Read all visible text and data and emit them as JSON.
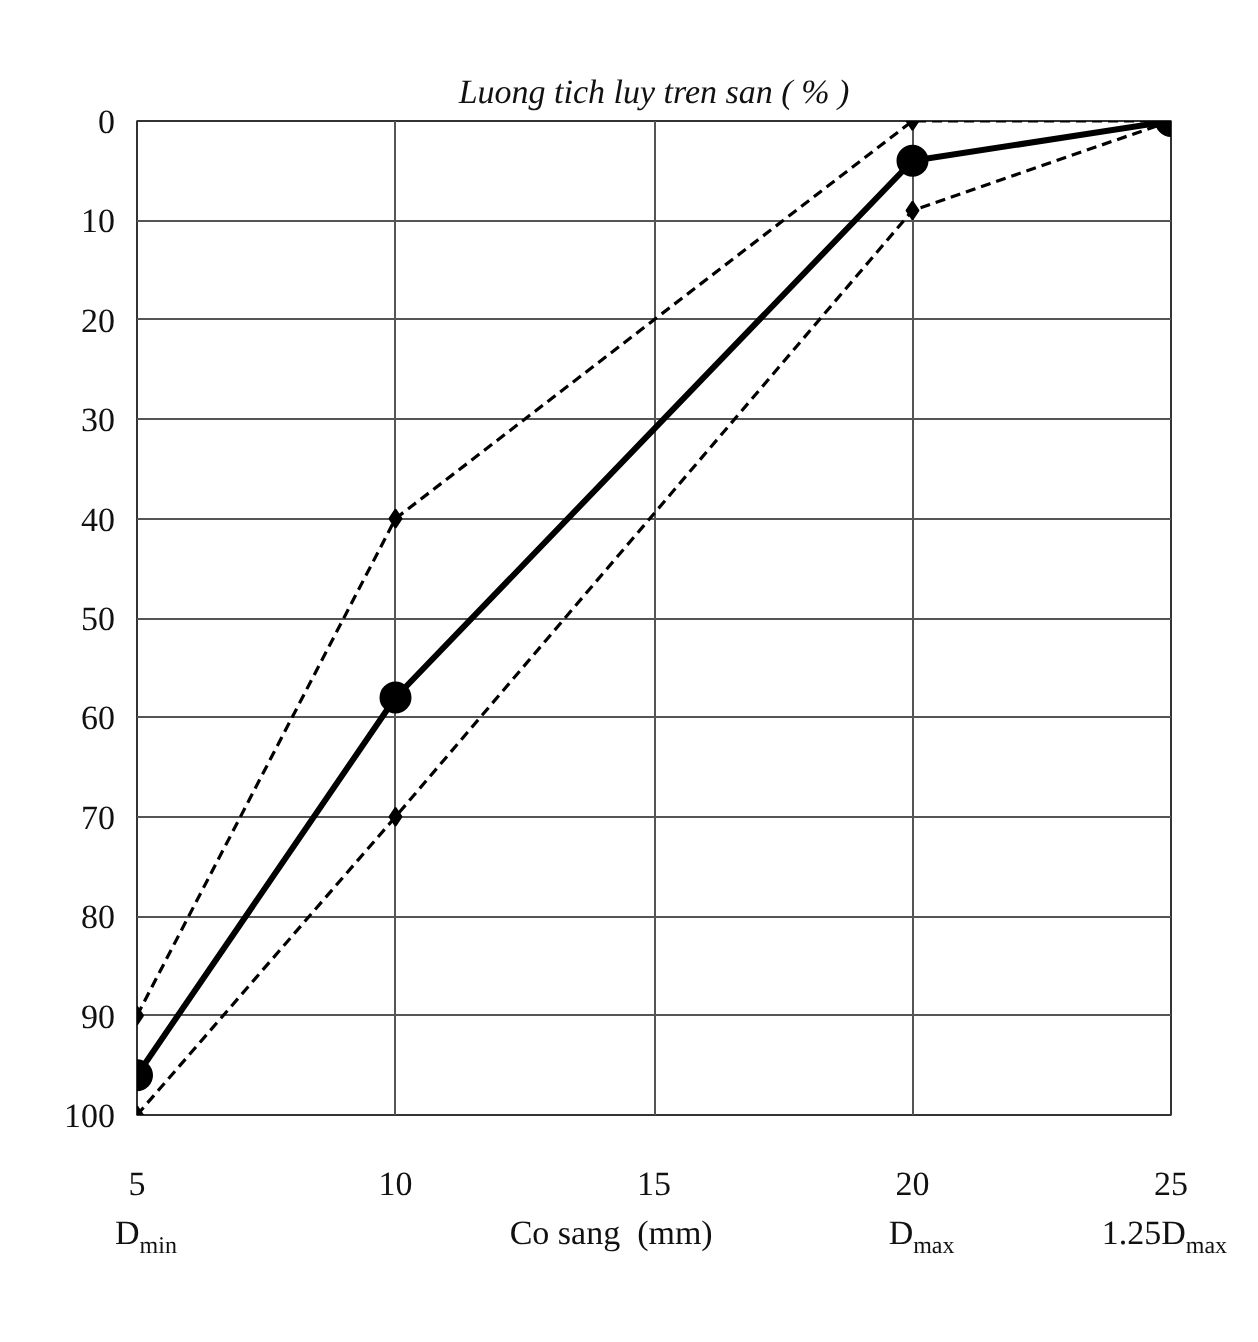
{
  "chart_data": {
    "type": "line",
    "ylabel": "Luong tich luy tren san ( % )",
    "xlabel": "Co sang  (mm)",
    "x": [
      5,
      10,
      20,
      25
    ],
    "series": [
      {
        "color": "#000000",
        "values": [
          90,
          40,
          0,
          0
        ],
        "line_style": "dashed",
        "marker": "diamond"
      },
      {
        "color": "#000000",
        "values": [
          100,
          70,
          9,
          0
        ],
        "line_style": "dashed",
        "marker": "diamond"
      },
      {
        "color": "#000000",
        "values": [
          96,
          58,
          4,
          0
        ],
        "line_style": "solid",
        "marker": "circle"
      }
    ],
    "xlim": [
      5,
      25
    ],
    "xticks": [
      5,
      10,
      15,
      20,
      25
    ],
    "ylim": [
      100,
      0
    ],
    "yticks": [
      0,
      10,
      20,
      30,
      40,
      50,
      60,
      70,
      80,
      90,
      100
    ],
    "grid": true,
    "annotations": [
      "D$_{min}$",
      "D$_{max}$",
      "1.25D$_{max}$"
    ]
  }
}
